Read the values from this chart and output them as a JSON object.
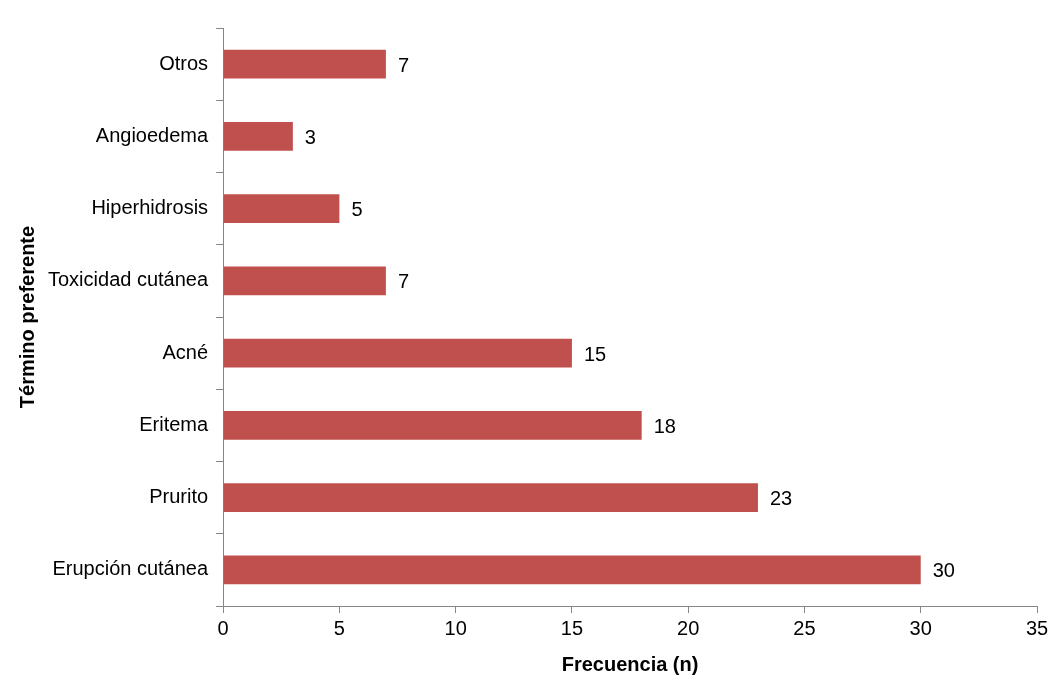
{
  "chart_data": {
    "type": "bar",
    "orientation": "horizontal",
    "xlabel": "Frecuencia (n)",
    "ylabel": "Término preferente",
    "categories": [
      "Otros",
      "Angioedema",
      "Hiperhidrosis",
      "Toxicidad cutánea",
      "Acné",
      "Eritema",
      "Prurito",
      "Erupción cutánea"
    ],
    "values": [
      7,
      3,
      5,
      7,
      15,
      18,
      23,
      30
    ],
    "color": "#c0504d",
    "xlim": [
      0,
      35
    ],
    "xticks": [
      0,
      5,
      10,
      15,
      20,
      25,
      30,
      35
    ],
    "data_labels": true,
    "legend": false,
    "grid": false
  }
}
